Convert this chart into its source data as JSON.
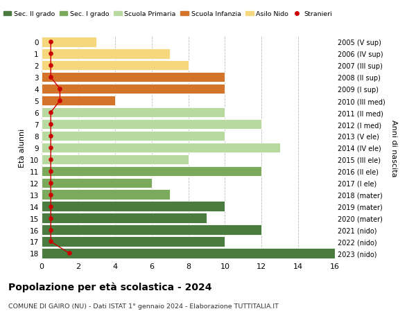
{
  "ages": [
    18,
    17,
    16,
    15,
    14,
    13,
    12,
    11,
    10,
    9,
    8,
    7,
    6,
    5,
    4,
    3,
    2,
    1,
    0
  ],
  "right_labels": [
    "2005 (V sup)",
    "2006 (IV sup)",
    "2007 (III sup)",
    "2008 (II sup)",
    "2009 (I sup)",
    "2010 (III med)",
    "2011 (II med)",
    "2012 (I med)",
    "2013 (V ele)",
    "2014 (IV ele)",
    "2015 (III ele)",
    "2016 (II ele)",
    "2017 (I ele)",
    "2018 (mater)",
    "2019 (mater)",
    "2020 (mater)",
    "2021 (nido)",
    "2022 (nido)",
    "2023 (nido)"
  ],
  "bar_values": [
    16,
    10,
    12,
    9,
    10,
    7,
    6,
    12,
    8,
    13,
    10,
    12,
    10,
    4,
    10,
    10,
    8,
    7,
    3
  ],
  "bar_colors": [
    "#4a7c3f",
    "#4a7c3f",
    "#4a7c3f",
    "#4a7c3f",
    "#4a7c3f",
    "#7caa5c",
    "#7caa5c",
    "#7caa5c",
    "#b8d9a0",
    "#b8d9a0",
    "#b8d9a0",
    "#b8d9a0",
    "#b8d9a0",
    "#d4732a",
    "#d4732a",
    "#d4732a",
    "#f5d87e",
    "#f5d87e",
    "#f5d87e"
  ],
  "stranieri_x": [
    1.5,
    0.5,
    0.5,
    0.5,
    0.5,
    0.5,
    0.5,
    0.5,
    0.5,
    0.5,
    0.5,
    0.5,
    0.5,
    1.0,
    1.0,
    0.5,
    0.5,
    0.5,
    0.5
  ],
  "stranieri_color": "#cc0000",
  "legend_labels": [
    "Sec. II grado",
    "Sec. I grado",
    "Scuola Primaria",
    "Scuola Infanzia",
    "Asilo Nido",
    "Stranieri"
  ],
  "legend_colors": [
    "#4a7c3f",
    "#7caa5c",
    "#b8d9a0",
    "#d4732a",
    "#f5d87e",
    "#cc0000"
  ],
  "title": "Popolazione per età scolastica - 2024",
  "subtitle": "COMUNE DI GAIRO (NU) - Dati ISTAT 1° gennaio 2024 - Elaborazione TUTTITALIA.IT",
  "ylabel_left": "Età alunni",
  "ylabel_right": "Anni di nascita",
  "xlim": [
    0,
    16
  ],
  "ylim_min": -0.5,
  "ylim_max": 18.5,
  "background_color": "#ffffff",
  "grid_color": "#bbbbbb"
}
